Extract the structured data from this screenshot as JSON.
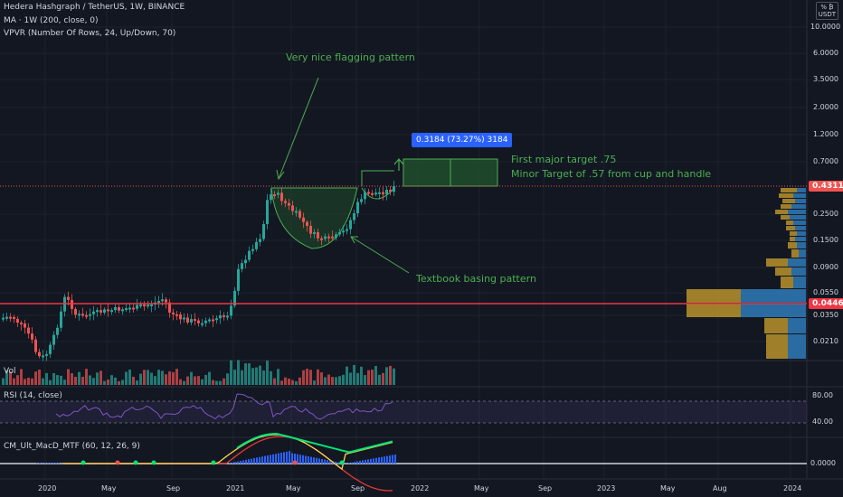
{
  "header": {
    "symbol_line": "Hedera Hashgraph / TetherUS, 1W, BINANCE",
    "ma_line": "MA · 1W (200, close, 0)",
    "vpvr_line": "VPVR (Number Of Rows, 24, Up/Down, 70)"
  },
  "unit_badge": {
    "line1": "% ₿",
    "line2": "USDT"
  },
  "price_axis": [
    "10.0000",
    "6.0000",
    "3.5000",
    "2.0000",
    "1.2000",
    "0.7000",
    "0.2500",
    "0.1500",
    "0.0900",
    "0.0550",
    "0.0350",
    "0.0210"
  ],
  "price_tags": {
    "current": "0.4311",
    "support": "0.0446"
  },
  "position_tool_label": "0.3184 (73.27%) 3184",
  "annotations": {
    "flag": "Very nice flagging pattern",
    "target1": "First major target .75",
    "target2": "Minor Target of .57 from cup and handle",
    "basing": "Textbook basing pattern"
  },
  "panes": {
    "vol": "Vol",
    "rsi": "RSI (14, close)",
    "rsi_axis": [
      "80.00",
      "40.00"
    ],
    "macd": "CM_Ult_MacD_MTF (60, 12, 26, 9)",
    "macd_axis": [
      "0.0000"
    ]
  },
  "time_axis": [
    "2020",
    "May",
    "Sep",
    "2021",
    "May",
    "Sep",
    "2022",
    "May",
    "Sep",
    "2023",
    "May",
    "Aug",
    "2024"
  ],
  "colors": {
    "background": "#131722",
    "up": "#26a69a",
    "down": "#ef5350",
    "support_line": "#f23645",
    "annotation": "#4caf50",
    "vpvr_up": "#2f7ab7",
    "vpvr_down": "#b8922a",
    "position_label": "#2962ff"
  }
}
